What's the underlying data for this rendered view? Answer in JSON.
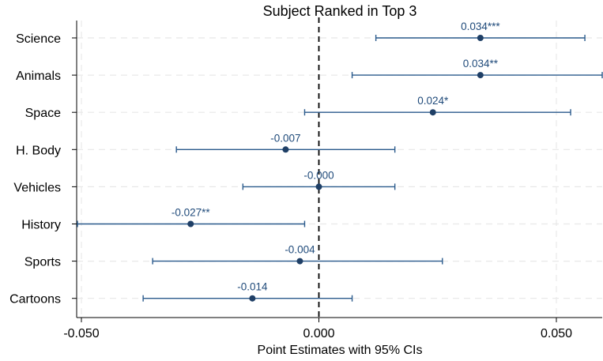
{
  "chart_data": {
    "type": "coefficient_plot",
    "title": "Subject Ranked in Top 3",
    "xlabel": "Point Estimates with 95% CIs",
    "xticks": [
      -0.05,
      0.0,
      0.05
    ],
    "xtick_labels": [
      "-0.050",
      "0.000",
      "0.050"
    ],
    "xlim": [
      -0.051,
      0.061
    ],
    "reference_line": 0,
    "grid": "dashed",
    "colors": {
      "marker": "#1f3f66",
      "ci": "#2a5a8c",
      "label": "#1f4a7a",
      "grid": "#e8e8e8"
    },
    "points": [
      {
        "category": "Science",
        "estimate": 0.034,
        "ci_low": 0.012,
        "ci_high": 0.056,
        "label": "0.034***"
      },
      {
        "category": "Animals",
        "estimate": 0.034,
        "ci_low": 0.007,
        "ci_high": 0.061,
        "label": "0.034**"
      },
      {
        "category": "Space",
        "estimate": 0.024,
        "ci_low": -0.003,
        "ci_high": 0.053,
        "label": "0.024*"
      },
      {
        "category": "H. Body",
        "estimate": -0.007,
        "ci_low": -0.03,
        "ci_high": 0.016,
        "label": "-0.007"
      },
      {
        "category": "Vehicles",
        "estimate": 0.0,
        "ci_low": -0.016,
        "ci_high": 0.016,
        "label": "-0.000"
      },
      {
        "category": "History",
        "estimate": -0.027,
        "ci_low": -0.051,
        "ci_high": -0.003,
        "label": "-0.027**"
      },
      {
        "category": "Sports",
        "estimate": -0.004,
        "ci_low": -0.035,
        "ci_high": 0.026,
        "label": "-0.004"
      },
      {
        "category": "Cartoons",
        "estimate": -0.014,
        "ci_low": -0.037,
        "ci_high": 0.007,
        "label": "-0.014"
      }
    ]
  }
}
